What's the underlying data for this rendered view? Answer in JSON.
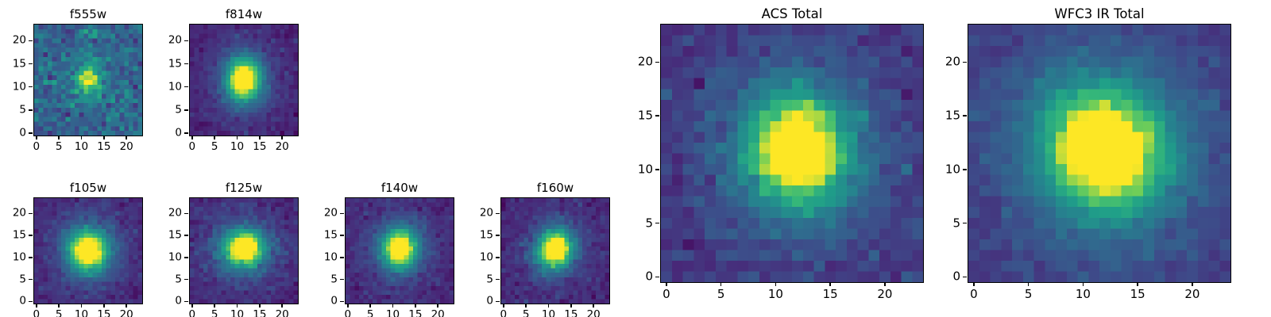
{
  "figure": {
    "background": "#ffffff",
    "description": "Grid of astronomical image cutout heatmaps (viridis colormap): six HST filter stamps and two stacked totals"
  },
  "colors": {
    "axes": "#000000",
    "viridis_low": "#440154",
    "viridis_mid": "#26828e",
    "viridis_high": "#fde725"
  },
  "chart_data": [
    {
      "id": "f555w",
      "title": "f555w",
      "type": "heatmap",
      "colormap": "viridis",
      "size": "small",
      "grid": {
        "nx": 24,
        "ny": 24
      },
      "extent": [
        -0.5,
        23.5,
        -0.5,
        23.5
      ],
      "x_ticks": [
        0,
        5,
        10,
        15,
        20
      ],
      "y_ticks": [
        0,
        5,
        10,
        15,
        20
      ],
      "model": {
        "center_x": 11.5,
        "center_y": 11.5,
        "sigma_x": 1.9,
        "sigma_y": 1.9,
        "theta": 0,
        "peak": 0.55,
        "halo_peak": 0.12,
        "halo_scale": 2.2,
        "background": 0.36,
        "noise": 0.09,
        "seed": 11
      }
    },
    {
      "id": "f814w",
      "title": "f814w",
      "type": "heatmap",
      "colormap": "viridis",
      "size": "small",
      "grid": {
        "nx": 24,
        "ny": 24
      },
      "extent": [
        -0.5,
        23.5,
        -0.5,
        23.5
      ],
      "x_ticks": [
        0,
        5,
        10,
        15,
        20
      ],
      "y_ticks": [
        0,
        5,
        10,
        15,
        20
      ],
      "model": {
        "center_x": 11.5,
        "center_y": 11.5,
        "sigma_x": 2.6,
        "sigma_y": 3.1,
        "theta": 0,
        "peak": 0.95,
        "halo_peak": 0.22,
        "halo_scale": 2.2,
        "background": 0.1,
        "noise": 0.035,
        "seed": 22
      }
    },
    {
      "id": "f105w",
      "title": "f105w",
      "type": "heatmap",
      "colormap": "viridis",
      "size": "small",
      "grid": {
        "nx": 24,
        "ny": 24
      },
      "extent": [
        -0.5,
        23.5,
        -0.5,
        23.5
      ],
      "x_ticks": [
        0,
        5,
        10,
        15,
        20
      ],
      "y_ticks": [
        0,
        5,
        10,
        15,
        20
      ],
      "model": {
        "center_x": 11.5,
        "center_y": 11.5,
        "sigma_x": 2.9,
        "sigma_y": 3.1,
        "theta": 0,
        "peak": 0.95,
        "halo_peak": 0.24,
        "halo_scale": 2.1,
        "background": 0.12,
        "noise": 0.04,
        "seed": 33
      }
    },
    {
      "id": "f125w",
      "title": "f125w",
      "type": "heatmap",
      "colormap": "viridis",
      "size": "small",
      "grid": {
        "nx": 24,
        "ny": 24
      },
      "extent": [
        -0.5,
        23.5,
        -0.5,
        23.5
      ],
      "x_ticks": [
        0,
        5,
        10,
        15,
        20
      ],
      "y_ticks": [
        0,
        5,
        10,
        15,
        20
      ],
      "model": {
        "center_x": 11.5,
        "center_y": 12.0,
        "sigma_x": 3.0,
        "sigma_y": 2.8,
        "theta": 0,
        "peak": 0.95,
        "halo_peak": 0.24,
        "halo_scale": 2.1,
        "background": 0.12,
        "noise": 0.045,
        "seed": 44
      }
    },
    {
      "id": "f140w",
      "title": "f140w",
      "type": "heatmap",
      "colormap": "viridis",
      "size": "small",
      "grid": {
        "nx": 24,
        "ny": 24
      },
      "extent": [
        -0.5,
        23.5,
        -0.5,
        23.5
      ],
      "x_ticks": [
        0,
        5,
        10,
        15,
        20
      ],
      "y_ticks": [
        0,
        5,
        10,
        15,
        20
      ],
      "model": {
        "center_x": 11.5,
        "center_y": 12.0,
        "sigma_x": 2.6,
        "sigma_y": 2.9,
        "theta": 0,
        "peak": 0.95,
        "halo_peak": 0.23,
        "halo_scale": 2.1,
        "background": 0.12,
        "noise": 0.04,
        "seed": 55
      }
    },
    {
      "id": "f160w",
      "title": "f160w",
      "type": "heatmap",
      "colormap": "viridis",
      "size": "small",
      "grid": {
        "nx": 24,
        "ny": 24
      },
      "extent": [
        -0.5,
        23.5,
        -0.5,
        23.5
      ],
      "x_ticks": [
        0,
        5,
        10,
        15,
        20
      ],
      "y_ticks": [
        0,
        5,
        10,
        15,
        20
      ],
      "model": {
        "center_x": 11.5,
        "center_y": 11.8,
        "sigma_x": 2.5,
        "sigma_y": 2.9,
        "theta": -0.35,
        "peak": 0.95,
        "halo_peak": 0.23,
        "halo_scale": 2.1,
        "background": 0.12,
        "noise": 0.04,
        "seed": 66
      }
    },
    {
      "id": "acs_total",
      "title": "ACS Total",
      "type": "heatmap",
      "colormap": "viridis",
      "size": "large",
      "grid": {
        "nx": 24,
        "ny": 24
      },
      "extent": [
        -0.5,
        23.5,
        -0.5,
        23.5
      ],
      "x_ticks": [
        0,
        5,
        10,
        15,
        20
      ],
      "y_ticks": [
        0,
        5,
        10,
        15,
        20
      ],
      "model": {
        "center_x": 12.0,
        "center_y": 11.8,
        "sigma_x": 3.0,
        "sigma_y": 3.3,
        "theta": 0.15,
        "peak": 0.95,
        "halo_peak": 0.24,
        "halo_scale": 2.2,
        "background": 0.16,
        "noise": 0.05,
        "seed": 77
      }
    },
    {
      "id": "wfc3_ir_total",
      "title": "WFC3 IR Total",
      "type": "heatmap",
      "colormap": "viridis",
      "size": "large",
      "grid": {
        "nx": 24,
        "ny": 24
      },
      "extent": [
        -0.5,
        23.5,
        -0.5,
        23.5
      ],
      "x_ticks": [
        0,
        5,
        10,
        15,
        20
      ],
      "y_ticks": [
        0,
        5,
        10,
        15,
        20
      ],
      "model": {
        "center_x": 12.0,
        "center_y": 11.8,
        "sigma_x": 3.5,
        "sigma_y": 3.8,
        "theta": 0.5,
        "peak": 0.95,
        "halo_peak": 0.26,
        "halo_scale": 2.2,
        "background": 0.17,
        "noise": 0.035,
        "seed": 88
      }
    }
  ]
}
